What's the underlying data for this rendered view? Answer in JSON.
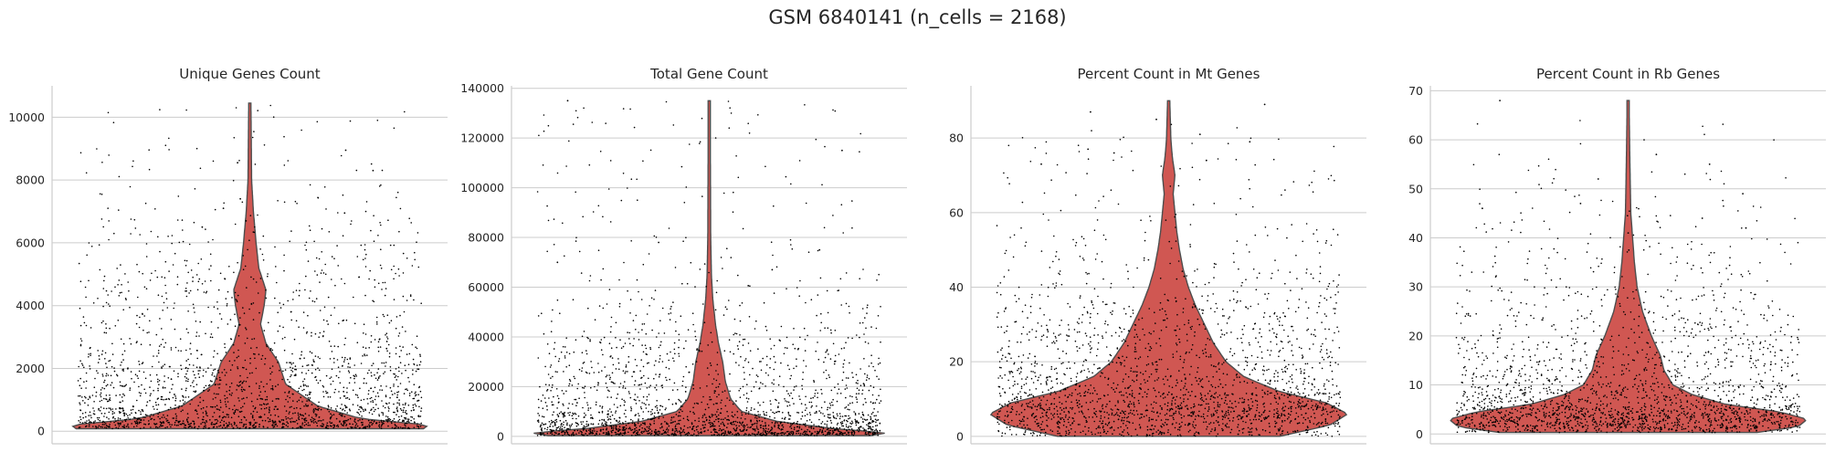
{
  "figure": {
    "title": "GSM 6840141 (n_cells = 2168)"
  },
  "style": {
    "violin_fill": "#d05752",
    "violin_edge": "#4d4d4d",
    "point_color": "#000000",
    "grid": "on"
  },
  "chart_data": [
    {
      "type": "violin",
      "title": "Unique Genes Count",
      "ylim": [
        -400,
        11000
      ],
      "yticks": [
        0,
        2000,
        4000,
        6000,
        8000,
        10000
      ],
      "ytick_labels": [
        "0",
        "2000",
        "4000",
        "6000",
        "8000",
        "10000"
      ],
      "n_points": 2168,
      "range": [
        80,
        10450
      ],
      "density_profile": [
        [
          80,
          0.97
        ],
        [
          200,
          1.0
        ],
        [
          400,
          0.62
        ],
        [
          800,
          0.38
        ],
        [
          1500,
          0.2
        ],
        [
          2200,
          0.16
        ],
        [
          2800,
          0.09
        ],
        [
          3400,
          0.06
        ],
        [
          4000,
          0.08
        ],
        [
          4500,
          0.09
        ],
        [
          5200,
          0.05
        ],
        [
          6000,
          0.035
        ],
        [
          7000,
          0.02
        ],
        [
          8000,
          0.01
        ],
        [
          10450,
          0.006
        ]
      ],
      "outliers": [
        8300,
        8550,
        8950,
        7400,
        7100,
        6950,
        6700,
        6500
      ]
    },
    {
      "type": "violin",
      "title": "Total Gene Count",
      "ylim": [
        -3000,
        141000
      ],
      "yticks": [
        0,
        20000,
        40000,
        60000,
        80000,
        100000,
        120000,
        140000
      ],
      "ytick_labels": [
        "0",
        "20000",
        "40000",
        "60000",
        "80000",
        "100000",
        "120000",
        "140000"
      ],
      "n_points": 2168,
      "range": [
        300,
        135000
      ],
      "density_profile": [
        [
          300,
          0.9
        ],
        [
          1500,
          1.0
        ],
        [
          3000,
          0.7
        ],
        [
          6000,
          0.38
        ],
        [
          10000,
          0.18
        ],
        [
          15000,
          0.12
        ],
        [
          22000,
          0.09
        ],
        [
          30000,
          0.075
        ],
        [
          38000,
          0.05
        ],
        [
          45000,
          0.035
        ],
        [
          55000,
          0.02
        ],
        [
          65000,
          0.012
        ],
        [
          80000,
          0.008
        ],
        [
          135000,
          0.005
        ]
      ],
      "outliers": [
        135000,
        115000,
        78000,
        75000,
        70000,
        67000
      ]
    },
    {
      "type": "violin",
      "title": "Percent Count in Mt Genes",
      "ylim": [
        -2,
        94
      ],
      "yticks": [
        0,
        20,
        40,
        60,
        80
      ],
      "ytick_labels": [
        "0",
        "20",
        "40",
        "60",
        "80"
      ],
      "n_points": 2168,
      "range": [
        0,
        90
      ],
      "density_profile": [
        [
          0,
          0.62
        ],
        [
          3,
          0.9
        ],
        [
          6,
          1.0
        ],
        [
          9,
          0.88
        ],
        [
          12,
          0.62
        ],
        [
          16,
          0.42
        ],
        [
          20,
          0.32
        ],
        [
          25,
          0.25
        ],
        [
          30,
          0.2
        ],
        [
          35,
          0.15
        ],
        [
          40,
          0.11
        ],
        [
          45,
          0.08
        ],
        [
          50,
          0.06
        ],
        [
          55,
          0.045
        ],
        [
          60,
          0.035
        ],
        [
          65,
          0.025
        ],
        [
          70,
          0.035
        ],
        [
          75,
          0.02
        ],
        [
          80,
          0.012
        ],
        [
          90,
          0.006
        ]
      ],
      "outliers": [
        89,
        87,
        85,
        81,
        79,
        77,
        76,
        74,
        73
      ]
    },
    {
      "type": "violin",
      "title": "Percent Count in Rb Genes",
      "ylim": [
        -2,
        71
      ],
      "yticks": [
        0,
        10,
        20,
        30,
        40,
        50,
        60,
        70
      ],
      "ytick_labels": [
        "0",
        "10",
        "20",
        "30",
        "40",
        "50",
        "60",
        "70"
      ],
      "n_points": 2168,
      "range": [
        0.3,
        68
      ],
      "density_profile": [
        [
          0.3,
          0.72
        ],
        [
          1.5,
          0.95
        ],
        [
          3,
          1.0
        ],
        [
          4.5,
          0.85
        ],
        [
          6,
          0.55
        ],
        [
          8,
          0.36
        ],
        [
          10,
          0.25
        ],
        [
          13,
          0.2
        ],
        [
          16,
          0.18
        ],
        [
          20,
          0.13
        ],
        [
          25,
          0.08
        ],
        [
          30,
          0.05
        ],
        [
          35,
          0.035
        ],
        [
          40,
          0.025
        ],
        [
          45,
          0.015
        ],
        [
          55,
          0.01
        ],
        [
          68,
          0.005
        ]
      ],
      "outliers": [
        68,
        57,
        55,
        52,
        49,
        47,
        46,
        44,
        42,
        41
      ]
    }
  ]
}
